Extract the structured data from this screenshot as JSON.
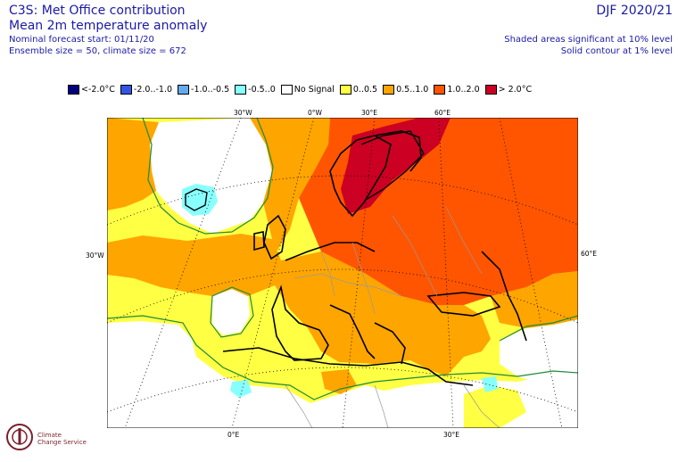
{
  "header": {
    "title_line1": "C3S: Met Office contribution",
    "title_line2": "Mean 2m temperature anomaly",
    "forecast_start": "Nominal forecast start: 01/11/20",
    "ensemble": "Ensemble size = 50, climate size = 672",
    "season": "DJF 2020/21",
    "sig_note": "Shaded areas significant at 10% level",
    "contour_note": "Solid contour at 1% level"
  },
  "legend": [
    {
      "label": "<-2.0°C",
      "color": "#000080"
    },
    {
      "label": "-2.0..-1.0",
      "color": "#3355e6"
    },
    {
      "label": "-1.0..-0.5",
      "color": "#66aaee"
    },
    {
      "label": "-0.5..0",
      "color": "#88ffff"
    },
    {
      "label": "No Signal",
      "color": "#ffffff"
    },
    {
      "label": "0..0.5",
      "color": "#ffff44"
    },
    {
      "label": "0.5..1.0",
      "color": "#ffa500"
    },
    {
      "label": "1.0..2.0",
      "color": "#ff5500"
    },
    {
      "label": "> 2.0°C",
      "color": "#cc0022"
    }
  ],
  "axis_labels": {
    "top": [
      "30°W",
      "0°W",
      "30°E",
      "60°E"
    ],
    "left": "30°W",
    "right": "60°E",
    "bottom": [
      "0°E",
      "30°E"
    ]
  },
  "logo": {
    "line1": "Climate",
    "line2": "Change Service"
  }
}
